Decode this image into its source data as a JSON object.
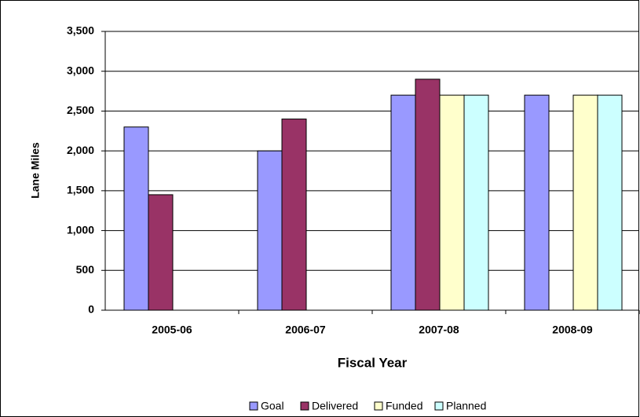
{
  "chart_data": {
    "type": "bar",
    "x_label": "Fiscal Year",
    "y_label": "Lane Miles",
    "categories": [
      "2005-06",
      "2006-07",
      "2007-08",
      "2008-09"
    ],
    "series": [
      {
        "name": "Goal",
        "color": "#9999ff",
        "values": [
          2300,
          2000,
          2700,
          2700
        ]
      },
      {
        "name": "Delivered",
        "color": "#993366",
        "values": [
          1450,
          2400,
          2900,
          null
        ]
      },
      {
        "name": "Funded",
        "color": "#ffffcc",
        "values": [
          null,
          null,
          2700,
          2700
        ]
      },
      {
        "name": "Planned",
        "color": "#ccffff",
        "values": [
          null,
          null,
          2700,
          2700
        ]
      }
    ],
    "ylim": [
      0,
      3500
    ],
    "yticks": [
      0,
      500,
      {
        "value": 1000,
        "label": "1,000"
      },
      {
        "value": 1500,
        "label": "1,500"
      },
      {
        "value": 2000,
        "label": "2,000"
      },
      {
        "value": 2500,
        "label": "2,500"
      },
      {
        "value": 3000,
        "label": "3,000"
      },
      {
        "value": 3500,
        "label": "3,500"
      }
    ],
    "grid": true,
    "legend": "bottom"
  }
}
